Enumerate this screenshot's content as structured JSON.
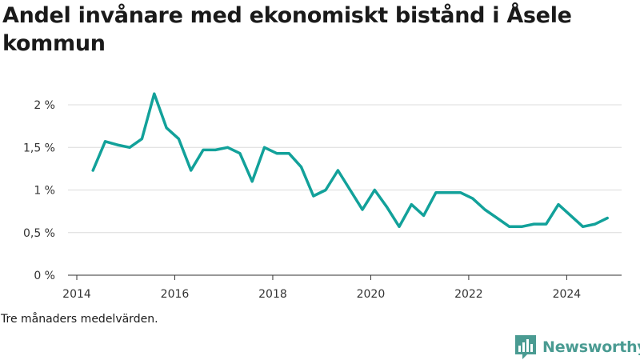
{
  "chart_data": {
    "type": "line",
    "title": "Andel invånare med ekonomiskt bistånd i Åsele kommun",
    "subtitle": "",
    "xlabel": "",
    "ylabel": "",
    "note": "Tre månaders medelvärden.",
    "x_ticks": [
      "2014",
      "2016",
      "2018",
      "2020",
      "2022",
      "2024"
    ],
    "x_tick_values": [
      2014,
      2016,
      2018,
      2020,
      2022,
      2024
    ],
    "y_ticks": [
      "0 %",
      "0,5 %",
      "1 %",
      "1,5 %",
      "2 %"
    ],
    "y_tick_values": [
      0,
      0.5,
      1,
      1.5,
      2
    ],
    "xlim": [
      2014,
      2025.3
    ],
    "ylim": [
      0,
      2
    ],
    "grid": true,
    "line_color": "#12a19a",
    "series": [
      {
        "name": "",
        "x": [
          2014.33,
          2014.58,
          2014.83,
          2015.08,
          2015.33,
          2015.58,
          2015.83,
          2016.08,
          2016.33,
          2016.58,
          2016.83,
          2017.08,
          2017.33,
          2017.58,
          2017.83,
          2018.08,
          2018.33,
          2018.58,
          2018.83,
          2019.08,
          2019.33,
          2019.58,
          2019.83,
          2020.08,
          2020.33,
          2020.58,
          2020.83,
          2021.08,
          2021.33,
          2021.58,
          2021.83,
          2022.08,
          2022.33,
          2022.58,
          2022.83,
          2023.08,
          2023.33,
          2023.58,
          2023.83,
          2024.08,
          2024.33,
          2024.58,
          2024.83
        ],
        "values": [
          1.23,
          1.57,
          1.53,
          1.5,
          1.6,
          2.13,
          1.73,
          1.6,
          1.23,
          1.47,
          1.47,
          1.5,
          1.43,
          1.1,
          1.5,
          1.43,
          1.43,
          1.27,
          0.93,
          1.0,
          1.23,
          1.0,
          0.77,
          1.0,
          0.8,
          0.57,
          0.83,
          0.7,
          0.97,
          0.97,
          0.97,
          0.9,
          0.77,
          0.67,
          0.57,
          0.57,
          0.6,
          0.6,
          0.83,
          0.7,
          0.57,
          0.6,
          0.67
        ]
      }
    ]
  },
  "brand": {
    "name": "Newsworthy",
    "logo_icon": "newsworthy-logo-icon",
    "color": "#4a9b92"
  }
}
